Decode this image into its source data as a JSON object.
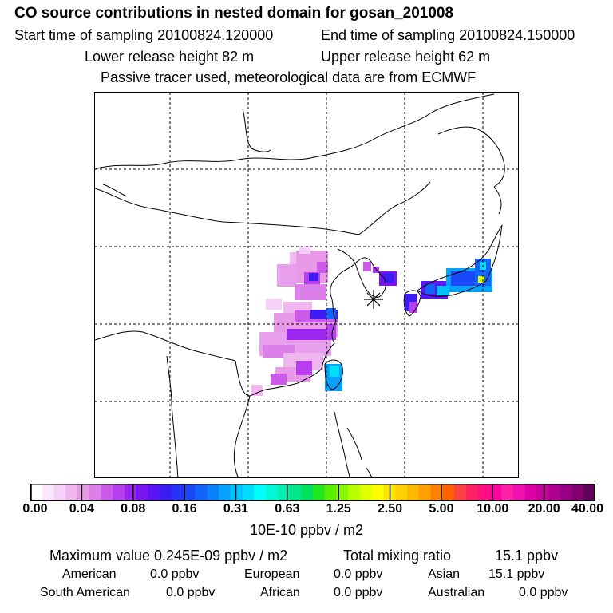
{
  "header": {
    "title": "CO  source contributions in nested domain for gosan_201008",
    "start_label": "Start time of sampling 20100824.120000",
    "end_label": "End time of sampling 20100824.150000",
    "lower_label": "Lower release height   82 m",
    "upper_label": "Upper release height   62 m",
    "note": "Passive tracer used, meteorological data are from ECMWF"
  },
  "chart_data": {
    "type": "heatmap",
    "title": "CO  source contributions in nested domain for gosan_201008",
    "colorbar": {
      "tick_labels": [
        "0.00",
        "0.04",
        "0.08",
        "0.16",
        "0.31",
        "0.63",
        "1.25",
        "2.50",
        "5.00",
        "10.00",
        "20.00",
        "40.00"
      ],
      "unit": "10E-10 ppbv / m2",
      "colors": [
        "#ffffff",
        "#fbe6fb",
        "#f6d0f6",
        "#f0b6f0",
        "#e89ae8",
        "#dd7fe8",
        "#cc5bea",
        "#b83ff0",
        "#9d27f0",
        "#7a14f0",
        "#5a14f5",
        "#3c1cf5",
        "#2432f8",
        "#1a48fa",
        "#1264fc",
        "#0a80ff",
        "#06a0ff",
        "#00c0ff",
        "#00dfff",
        "#00ffff",
        "#00f8d8",
        "#00f0b0",
        "#00e88a",
        "#00e060",
        "#20e820",
        "#58f000",
        "#88f800",
        "#b8ff00",
        "#e0ff00",
        "#ffff00",
        "#ffe800",
        "#ffd000",
        "#ffb800",
        "#ffa000",
        "#ff8000",
        "#ff6000",
        "#ff4040",
        "#ff2060",
        "#ff1080",
        "#ff00a0",
        "#ff20a8",
        "#f010b0",
        "#e000a8",
        "#c8009c",
        "#b00090",
        "#980084",
        "#800070",
        "#600058"
      ]
    },
    "receptor": "gosan",
    "grid": true
  },
  "summary": {
    "max_label": "Maximum value  0.245E-09 ppbv / m2",
    "total_label": "Total mixing ratio",
    "total_value": "15.1 ppbv",
    "regions": [
      {
        "name": "American",
        "value": "0.0 ppbv"
      },
      {
        "name": "European",
        "value": "0.0 ppbv"
      },
      {
        "name": "Asian",
        "value": "15.1 ppbv"
      },
      {
        "name": "South American",
        "value": "0.0 ppbv"
      },
      {
        "name": "African",
        "value": "0.0 ppbv"
      },
      {
        "name": "Australian",
        "value": "0.0 ppbv"
      }
    ]
  }
}
